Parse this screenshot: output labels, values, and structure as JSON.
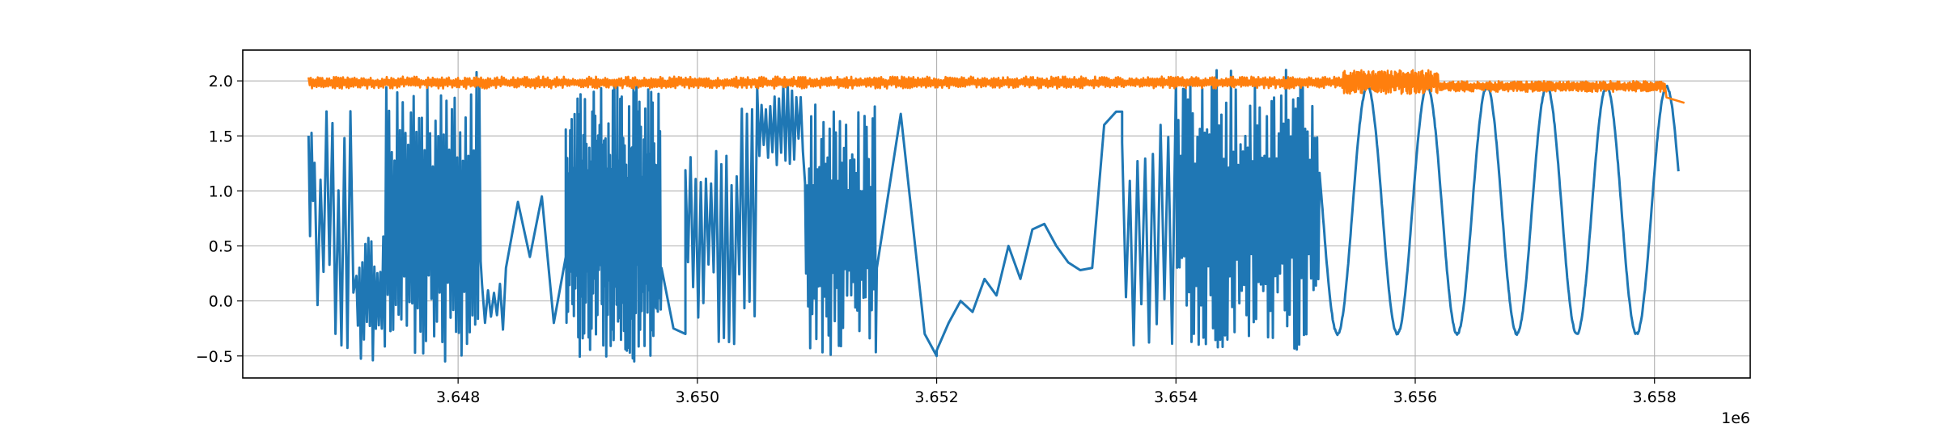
{
  "chart_data": {
    "type": "line",
    "title": "",
    "xlabel": "",
    "ylabel": "",
    "x_offset_label": "1e6",
    "xlim": [
      3.6462,
      3.6588
    ],
    "ylim": [
      -0.7,
      2.28
    ],
    "grid": true,
    "x_ticks": [
      {
        "value": 3.648,
        "label": "3.648"
      },
      {
        "value": 3.65,
        "label": "3.650"
      },
      {
        "value": 3.652,
        "label": "3.652"
      },
      {
        "value": 3.654,
        "label": "3.654"
      },
      {
        "value": 3.656,
        "label": "3.656"
      },
      {
        "value": 3.658,
        "label": "3.658"
      }
    ],
    "y_ticks": [
      {
        "value": -0.5,
        "label": "−0.5"
      },
      {
        "value": 0.0,
        "label": "0.0"
      },
      {
        "value": 0.5,
        "label": "0.5"
      },
      {
        "value": 1.0,
        "label": "1.0"
      },
      {
        "value": 1.5,
        "label": "1.5"
      },
      {
        "value": 2.0,
        "label": "2.0"
      }
    ],
    "series": [
      {
        "color": "#1f77b4",
        "x_range": [
          3.64675,
          3.65825
        ],
        "segments": [
          {
            "kind": "noise",
            "x0": 3.64675,
            "x1": 3.6468,
            "lo": 0.45,
            "hi": 1.78,
            "n": 4
          },
          {
            "kind": "noise",
            "x0": 3.6468,
            "x1": 3.64715,
            "lo": -0.45,
            "hi": 1.78,
            "n": 14
          },
          {
            "kind": "noise",
            "x0": 3.64715,
            "x1": 3.6474,
            "lo": -0.55,
            "hi": 0.6,
            "n": 20
          },
          {
            "kind": "noise",
            "x0": 3.6474,
            "x1": 3.6482,
            "lo": -0.55,
            "hi": 2.08,
            "n": 70
          },
          {
            "kind": "noise",
            "x0": 3.6482,
            "x1": 3.6484,
            "lo": -0.3,
            "hi": 0.2,
            "n": 8
          },
          {
            "kind": "points",
            "x": [
              3.6484,
              3.6485,
              3.6486,
              3.6487,
              3.6488,
              3.6489
            ],
            "y": [
              0.3,
              0.9,
              0.4,
              0.95,
              -0.2,
              0.4
            ]
          },
          {
            "kind": "noise",
            "x0": 3.6489,
            "x1": 3.6497,
            "lo": -0.55,
            "hi": 2.0,
            "n": 130
          },
          {
            "kind": "points",
            "x": [
              3.6497,
              3.6498,
              3.6499
            ],
            "y": [
              0.3,
              -0.25,
              -0.3
            ]
          },
          {
            "kind": "noise",
            "x0": 3.6499,
            "x1": 3.6505,
            "lo": -0.4,
            "hi": 1.78,
            "n": 28
          },
          {
            "kind": "noise",
            "x0": 3.6505,
            "x1": 3.6509,
            "lo": 1.2,
            "hi": 2.0,
            "n": 22
          },
          {
            "kind": "noise",
            "x0": 3.6509,
            "x1": 3.6515,
            "lo": -0.5,
            "hi": 1.8,
            "n": 70
          },
          {
            "kind": "points",
            "x": [
              3.6515,
              3.6517,
              3.6519,
              3.652
            ],
            "y": [
              0.3,
              1.7,
              -0.3,
              -0.5
            ]
          },
          {
            "kind": "points",
            "x": [
              3.652,
              3.6521,
              3.6522,
              3.6523,
              3.6524,
              3.6525,
              3.6526,
              3.6527,
              3.6528,
              3.6529,
              3.653,
              3.6531,
              3.6532,
              3.6533,
              3.6534,
              3.6535,
              3.65355
            ],
            "y": [
              -0.45,
              -0.2,
              0.0,
              -0.1,
              0.2,
              0.05,
              0.5,
              0.2,
              0.65,
              0.7,
              0.5,
              0.35,
              0.28,
              0.3,
              1.6,
              1.72,
              1.72
            ]
          },
          {
            "kind": "noise",
            "x0": 3.65355,
            "x1": 3.654,
            "lo": -0.5,
            "hi": 1.72,
            "n": 14
          },
          {
            "kind": "noise",
            "x0": 3.654,
            "x1": 3.6552,
            "lo": -0.45,
            "hi": 2.1,
            "n": 120
          },
          {
            "kind": "sine",
            "x0": 3.6552,
            "x1": 3.6582,
            "period": 0.0005,
            "phase": 3.6556,
            "lo": -0.3,
            "hi": 1.95
          }
        ]
      },
      {
        "color": "#ff7f0e",
        "x_range": [
          3.64675,
          3.65825
        ],
        "segments": [
          {
            "kind": "noise",
            "x0": 3.64675,
            "x1": 3.6554,
            "lo": 1.93,
            "hi": 2.04,
            "n": 900
          },
          {
            "kind": "noise",
            "x0": 3.6554,
            "x1": 3.6562,
            "lo": 1.88,
            "hi": 2.1,
            "n": 160
          },
          {
            "kind": "noise",
            "x0": 3.6562,
            "x1": 3.6581,
            "lo": 1.9,
            "hi": 2.0,
            "n": 260
          },
          {
            "kind": "points",
            "x": [
              3.6581,
              3.65825
            ],
            "y": [
              1.85,
              1.8
            ]
          }
        ]
      }
    ]
  }
}
